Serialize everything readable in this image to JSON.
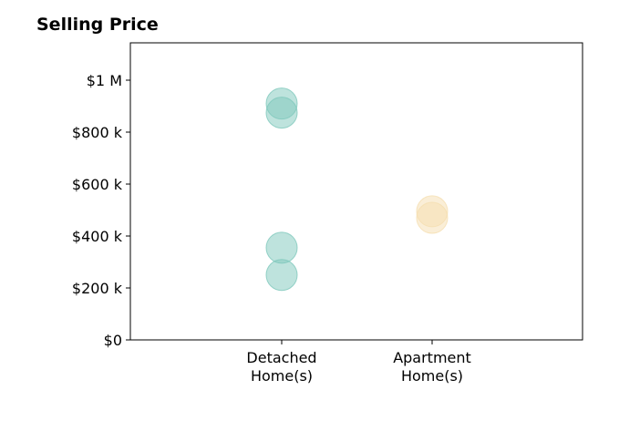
{
  "chart_data": {
    "type": "scatter",
    "title": "Selling Price",
    "xlabel": "",
    "ylabel": "",
    "categories": [
      "Detached Home(s)",
      "Apartment Home(s)"
    ],
    "category_lines": [
      [
        "Detached",
        "Home(s)"
      ],
      [
        "Apartment",
        "Home(s)"
      ]
    ],
    "ylim": [
      0,
      1000000
    ],
    "yticks": [
      0,
      200000,
      400000,
      600000,
      800000,
      1000000
    ],
    "ytick_labels": [
      "$0",
      "$200 k",
      "$400 k",
      "$600 k",
      "$800 k",
      "$1 M"
    ],
    "grid": false,
    "series": [
      {
        "category": "Detached Home(s)",
        "values": [
          910000,
          875000,
          355000,
          250000
        ],
        "color": "#7ec8bb"
      },
      {
        "category": "Apartment Home(s)",
        "values": [
          495000,
          470000
        ],
        "color": "#f5deb0"
      }
    ]
  }
}
